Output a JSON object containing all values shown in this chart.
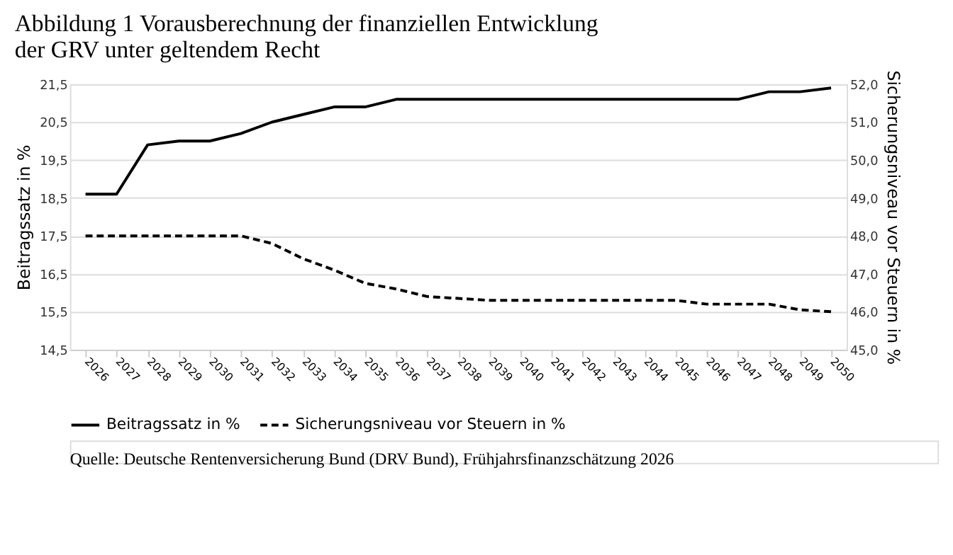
{
  "chart_data": {
    "type": "line",
    "title": "Abbildung 1 Vorausberechnung der finanziellen Entwicklung der GRV unter geltendem Recht",
    "categories": [
      "2026",
      "2027",
      "2028",
      "2029",
      "2030",
      "2031",
      "2032",
      "2033",
      "2034",
      "2035",
      "2036",
      "2037",
      "2038",
      "2039",
      "2040",
      "2041",
      "2042",
      "2043",
      "2044",
      "2045",
      "2046",
      "2047",
      "2048",
      "2049",
      "2050"
    ],
    "series": [
      {
        "name": "Beitragssatz in %",
        "color": "#000000",
        "line_style": "solid",
        "values": [
          18.6,
          18.6,
          19.9,
          20.0,
          20.0,
          20.2,
          20.5,
          20.7,
          20.9,
          20.9,
          21.1,
          21.1,
          21.1,
          21.1,
          21.1,
          21.1,
          21.1,
          21.1,
          21.1,
          21.1,
          21.1,
          21.1,
          21.3,
          21.3,
          21.4
        ]
      },
      {
        "name": "Sicherungsniveau vor Steuern in %",
        "color": "#000000",
        "line_style": "dashed",
        "axis": "y2",
        "values": [
          48.0,
          48.0,
          48.0,
          48.0,
          48.0,
          48.0,
          47.8,
          47.4,
          47.1,
          46.75,
          46.6,
          46.4,
          46.35,
          46.3,
          46.3,
          46.3,
          46.3,
          46.3,
          46.3,
          46.3,
          46.2,
          46.2,
          46.2,
          46.05,
          46.0
        ]
      }
    ],
    "ylabel": "Beitragssatz in %",
    "y2label": "Sicherungsniveau vor Steuern in %",
    "ylim": [
      14.5,
      21.5
    ],
    "yticks": [
      {
        "value": 14.5,
        "label": "14,5"
      },
      {
        "value": 15.5,
        "label": "15,5"
      },
      {
        "value": 16.5,
        "label": "16,5"
      },
      {
        "value": 17.5,
        "label": "17,5"
      },
      {
        "value": 18.5,
        "label": "18,5"
      },
      {
        "value": 19.5,
        "label": "19,5"
      },
      {
        "value": 20.5,
        "label": "20,5"
      },
      {
        "value": 21.5,
        "label": "21,5"
      }
    ],
    "y2lim": [
      45.0,
      52.0
    ],
    "y2ticks": [
      {
        "value": 45,
        "label": "45,0"
      },
      {
        "value": 46,
        "label": "46,0"
      },
      {
        "value": 47,
        "label": "47,0"
      },
      {
        "value": 48,
        "label": "48,0"
      },
      {
        "value": 49,
        "label": "49,0"
      },
      {
        "value": 50,
        "label": "50,0"
      },
      {
        "value": 51,
        "label": "51,0"
      },
      {
        "value": 52,
        "label": "52,0"
      }
    ],
    "grid": "y",
    "legend": "bottom",
    "annotations": [
      "Quelle: Deutsche Rentenversicherung Bund (DRV Bund), Frühjahrsfinanzschätzung 2026"
    ]
  }
}
